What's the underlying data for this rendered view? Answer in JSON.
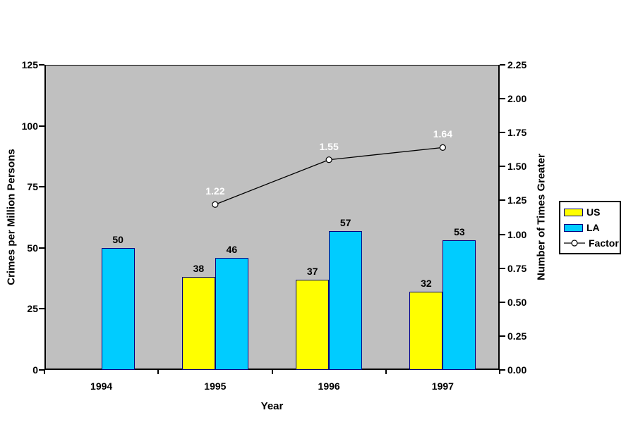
{
  "chart_data": {
    "type": "bar+line",
    "title": "",
    "xlabel": "Year",
    "ylabel_left": "Crimes per Million Persons",
    "ylabel_right": "Number of Times Greater",
    "categories": [
      "1994",
      "1995",
      "1996",
      "1997"
    ],
    "series": [
      {
        "name": "US",
        "type": "bar",
        "axis": "left",
        "values": [
          null,
          38,
          37,
          32
        ],
        "labels": [
          "",
          "38",
          "37",
          "32"
        ],
        "fill": "#FFFF00",
        "border": "#000080",
        "label_color": "#000000"
      },
      {
        "name": "LA",
        "type": "bar",
        "axis": "left",
        "values": [
          50,
          46,
          57,
          53
        ],
        "labels": [
          "50",
          "46",
          "57",
          "53"
        ],
        "fill": "#00CCFF",
        "border": "#000080",
        "label_color": "#000000"
      },
      {
        "name": "Factor",
        "type": "line",
        "axis": "right",
        "values": [
          null,
          1.22,
          1.55,
          1.64
        ],
        "labels": [
          "",
          "1.22",
          "1.55",
          "1.64"
        ],
        "line_color": "#000000",
        "marker_fill": "#FFFFFF",
        "marker_stroke": "#000000",
        "label_color": "#FFFFFF"
      }
    ],
    "axes": {
      "left": {
        "min": 0,
        "max": 125,
        "ticks": [
          "0",
          "25",
          "50",
          "75",
          "100",
          "125"
        ]
      },
      "right": {
        "min": 0,
        "max": 2.25,
        "ticks": [
          "0.00",
          "0.25",
          "0.50",
          "0.75",
          "1.00",
          "1.25",
          "1.50",
          "1.75",
          "2.00",
          "2.25"
        ]
      }
    },
    "legend": {
      "entries": [
        "US",
        "LA",
        "Factor"
      ],
      "position": "right"
    },
    "plot_bg": "#C0C0C0",
    "grid": "off"
  }
}
